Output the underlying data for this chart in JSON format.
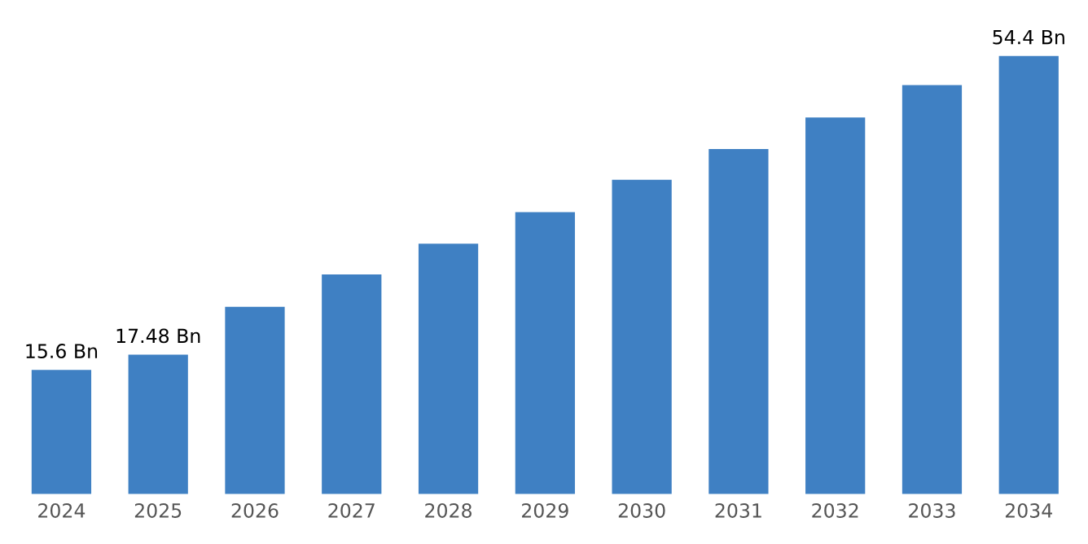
{
  "chart_data": {
    "type": "bar",
    "categories": [
      "2024",
      "2025",
      "2026",
      "2027",
      "2028",
      "2029",
      "2030",
      "2031",
      "2032",
      "2033",
      "2034"
    ],
    "values": [
      15.6,
      17.48,
      23.4,
      27.4,
      31.2,
      35.1,
      39.1,
      42.9,
      46.8,
      50.8,
      54.4
    ],
    "value_labels": [
      "15.6 Bn",
      "17.48 Bn",
      null,
      null,
      null,
      null,
      null,
      null,
      null,
      null,
      "54.4 Bn"
    ],
    "color": "#3f80c3",
    "grid": false,
    "legend": false,
    "tick_labels": "x"
  }
}
